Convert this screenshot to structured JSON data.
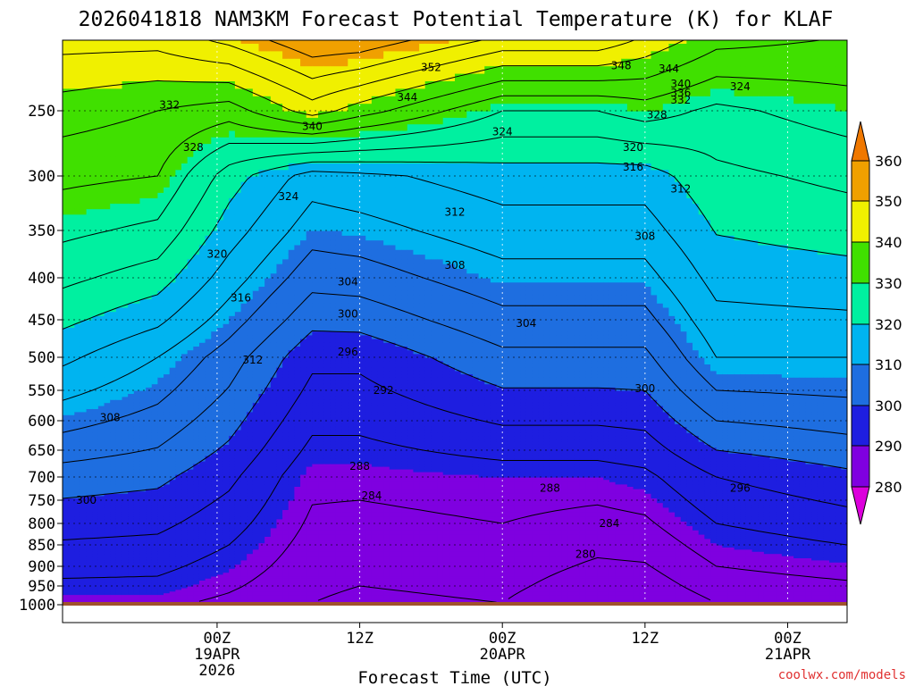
{
  "chart_data": {
    "type": "heatmap",
    "title": "2026041818 NAM3KM Forecast Potential Temperature (K) for KLAF",
    "xlabel": "Forecast Time (UTC)",
    "ylabel": "",
    "credit": "coolwx.com/models",
    "units": "K",
    "forecast_hours_range": [
      -7,
      59
    ],
    "pressure_range_hPa": [
      1000,
      200
    ],
    "y_ticks": [
      "250",
      "300",
      "350",
      "400",
      "450",
      "500",
      "550",
      "600",
      "650",
      "700",
      "750",
      "800",
      "850",
      "900",
      "950",
      "1000"
    ],
    "y_tick_values": [
      250,
      300,
      350,
      400,
      450,
      500,
      550,
      600,
      650,
      700,
      750,
      800,
      850,
      900,
      950,
      1000
    ],
    "x_ticks": [
      {
        "hour": 6,
        "line1": "00Z",
        "line2": "19APR",
        "line3": "2026"
      },
      {
        "hour": 18,
        "line1": "12Z",
        "line2": "",
        "line3": ""
      },
      {
        "hour": 30,
        "line1": "00Z",
        "line2": "20APR",
        "line3": ""
      },
      {
        "hour": 42,
        "line1": "12Z",
        "line2": "",
        "line3": ""
      },
      {
        "hour": 54,
        "line1": "00Z",
        "line2": "21APR",
        "line3": ""
      }
    ],
    "colorbar": {
      "levels": [
        280,
        290,
        300,
        310,
        320,
        330,
        340,
        350,
        360
      ],
      "labels": [
        "280",
        "290",
        "300",
        "310",
        "320",
        "330",
        "340",
        "350",
        "360"
      ],
      "colors": [
        "#dc00dc",
        "#7f00e0",
        "#1e1ee0",
        "#1e6ee0",
        "#00b4f0",
        "#00f0a0",
        "#40e000",
        "#f0f000",
        "#f0a000",
        "#f07800"
      ]
    },
    "theta_profiles": [
      {
        "hour": -7,
        "values": [
          {
            "p": 1000,
            "theta": 289
          },
          {
            "p": 700,
            "theta": 302
          },
          {
            "p": 500,
            "theta": 317
          },
          {
            "p": 300,
            "theta": 333
          },
          {
            "p": 250,
            "theta": 338
          },
          {
            "p": 200,
            "theta": 346
          }
        ]
      },
      {
        "hour": 1,
        "values": [
          {
            "p": 1000,
            "theta": 289
          },
          {
            "p": 700,
            "theta": 301
          },
          {
            "p": 500,
            "theta": 312
          },
          {
            "p": 300,
            "theta": 332
          },
          {
            "p": 250,
            "theta": 336
          },
          {
            "p": 200,
            "theta": 346
          }
        ]
      },
      {
        "hour": 7,
        "values": [
          {
            "p": 1000,
            "theta": 287
          },
          {
            "p": 700,
            "theta": 297
          },
          {
            "p": 500,
            "theta": 306
          },
          {
            "p": 300,
            "theta": 322
          },
          {
            "p": 250,
            "theta": 334
          },
          {
            "p": 200,
            "theta": 350
          }
        ]
      },
      {
        "hour": 14,
        "values": [
          {
            "p": 1000,
            "theta": 284
          },
          {
            "p": 700,
            "theta": 289
          },
          {
            "p": 500,
            "theta": 297
          },
          {
            "p": 300,
            "theta": 314
          },
          {
            "p": 250,
            "theta": 342
          },
          {
            "p": 200,
            "theta": 356
          }
        ]
      },
      {
        "hour": 18,
        "values": [
          {
            "p": 1000,
            "theta": 283
          },
          {
            "p": 700,
            "theta": 289
          },
          {
            "p": 500,
            "theta": 297
          },
          {
            "p": 300,
            "theta": 315
          },
          {
            "p": 250,
            "theta": 338
          },
          {
            "p": 200,
            "theta": 356
          }
        ]
      },
      {
        "hour": 30,
        "values": [
          {
            "p": 1000,
            "theta": 284
          },
          {
            "p": 700,
            "theta": 290
          },
          {
            "p": 500,
            "theta": 303
          },
          {
            "p": 300,
            "theta": 318
          },
          {
            "p": 250,
            "theta": 328
          },
          {
            "p": 200,
            "theta": 348
          }
        ]
      },
      {
        "hour": 38,
        "values": [
          {
            "p": 1000,
            "theta": 280
          },
          {
            "p": 700,
            "theta": 290
          },
          {
            "p": 500,
            "theta": 303
          },
          {
            "p": 300,
            "theta": 318
          },
          {
            "p": 250,
            "theta": 328
          },
          {
            "p": 200,
            "theta": 348
          }
        ]
      },
      {
        "hour": 42,
        "values": [
          {
            "p": 1000,
            "theta": 280
          },
          {
            "p": 700,
            "theta": 291
          },
          {
            "p": 500,
            "theta": 303
          },
          {
            "p": 300,
            "theta": 318
          },
          {
            "p": 250,
            "theta": 330
          },
          {
            "p": 200,
            "theta": 344
          }
        ]
      },
      {
        "hour": 48,
        "values": [
          {
            "p": 1000,
            "theta": 284
          },
          {
            "p": 700,
            "theta": 296
          },
          {
            "p": 500,
            "theta": 312
          },
          {
            "p": 300,
            "theta": 323
          },
          {
            "p": 250,
            "theta": 327
          },
          {
            "p": 200,
            "theta": 338
          }
        ]
      },
      {
        "hour": 59,
        "values": [
          {
            "p": 1000,
            "theta": 285
          },
          {
            "p": 700,
            "theta": 299
          },
          {
            "p": 500,
            "theta": 312
          },
          {
            "p": 300,
            "theta": 325
          },
          {
            "p": 250,
            "theta": 330
          },
          {
            "p": 200,
            "theta": 336
          }
        ]
      }
    ],
    "contour_labels": [
      {
        "text": "352",
        "hour": 24,
        "p": 221
      },
      {
        "text": "348",
        "hour": 40,
        "p": 220
      },
      {
        "text": "344",
        "hour": 44,
        "p": 222
      },
      {
        "text": "340",
        "hour": 45,
        "p": 232
      },
      {
        "text": "336",
        "hour": 45,
        "p": 238
      },
      {
        "text": "332",
        "hour": 45,
        "p": 243
      },
      {
        "text": "328",
        "hour": 43,
        "p": 253
      },
      {
        "text": "324",
        "hour": 50,
        "p": 234
      },
      {
        "text": "344",
        "hour": 22,
        "p": 241
      },
      {
        "text": "340",
        "hour": 14,
        "p": 262
      },
      {
        "text": "332",
        "hour": 2,
        "p": 246
      },
      {
        "text": "328",
        "hour": 4,
        "p": 278
      },
      {
        "text": "324",
        "hour": 30,
        "p": 266
      },
      {
        "text": "320",
        "hour": 41,
        "p": 278
      },
      {
        "text": "316",
        "hour": 41,
        "p": 293
      },
      {
        "text": "312",
        "hour": 45,
        "p": 312
      },
      {
        "text": "324",
        "hour": 12,
        "p": 319
      },
      {
        "text": "312",
        "hour": 26,
        "p": 333
      },
      {
        "text": "308",
        "hour": 42,
        "p": 356
      },
      {
        "text": "320",
        "hour": 6,
        "p": 375
      },
      {
        "text": "308",
        "hour": 26,
        "p": 387
      },
      {
        "text": "304",
        "hour": 17,
        "p": 405
      },
      {
        "text": "316",
        "hour": 8,
        "p": 424
      },
      {
        "text": "300",
        "hour": 17,
        "p": 443
      },
      {
        "text": "304",
        "hour": 32,
        "p": 455
      },
      {
        "text": "296",
        "hour": 17,
        "p": 493
      },
      {
        "text": "312",
        "hour": 9,
        "p": 504
      },
      {
        "text": "292",
        "hour": 20,
        "p": 550
      },
      {
        "text": "300",
        "hour": 42,
        "p": 547
      },
      {
        "text": "308",
        "hour": -3,
        "p": 595
      },
      {
        "text": "288",
        "hour": 18,
        "p": 680
      },
      {
        "text": "284",
        "hour": 19,
        "p": 740
      },
      {
        "text": "288",
        "hour": 34,
        "p": 724
      },
      {
        "text": "296",
        "hour": 50,
        "p": 724
      },
      {
        "text": "300",
        "hour": -5,
        "p": 750
      },
      {
        "text": "284",
        "hour": 39,
        "p": 800
      },
      {
        "text": "280",
        "hour": 37,
        "p": 872
      }
    ]
  }
}
